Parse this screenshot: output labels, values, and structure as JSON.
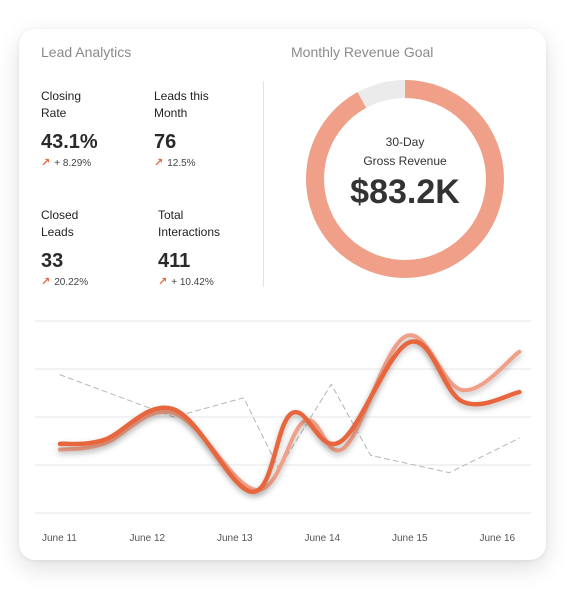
{
  "lead_analytics": {
    "title": "Lead Analytics",
    "metrics": [
      {
        "label_line1": "Closing",
        "label_line2": "Rate",
        "value": "43.1%",
        "change": "+ 8.29%"
      },
      {
        "label_line1": "Leads this",
        "label_line2": "Month",
        "value": "76",
        "change": "12.5%"
      },
      {
        "label_line1": "Closed",
        "label_line2": "Leads",
        "value": "33",
        "change": "20.22%"
      },
      {
        "label_line1": "Total",
        "label_line2": "Interactions",
        "value": "411",
        "change": "+ 10.42%"
      }
    ],
    "arrow_icon": "trend-up-icon"
  },
  "revenue_goal": {
    "title": "Monthly Revenue Goal",
    "label_line1": "30-Day",
    "label_line2": "Gross Revenue",
    "value": "$83.2K",
    "progress_fraction": 0.92,
    "colors": {
      "progress": "#f0a088",
      "remainder": "#ebebeb"
    }
  },
  "chart_data": {
    "type": "line",
    "categories": [
      "June 11",
      "June 12",
      "June 13",
      "June 14",
      "June 15",
      "June 16"
    ],
    "ylim": [
      0,
      100
    ],
    "grid": true,
    "series": [
      {
        "style": "thick",
        "color": "#e8663d",
        "x": [
          0,
          0.5,
          1.3,
          2.2,
          2.65,
          3.2,
          4.0,
          4.6,
          5.25
        ],
        "values": [
          36,
          38,
          54,
          11,
          52,
          37,
          89,
          58,
          63
        ]
      },
      {
        "style": "light",
        "color": "#f0a088",
        "x": [
          0,
          0.5,
          1.3,
          2.25,
          2.8,
          3.25,
          3.95,
          4.6,
          5.25
        ],
        "values": [
          33,
          36,
          52,
          12,
          48,
          34,
          92,
          64,
          84
        ]
      },
      {
        "style": "dashed",
        "color": "#b5b5b5",
        "x": [
          0,
          1.3,
          2.1,
          2.5,
          3.1,
          3.55,
          4.45,
          5.25
        ],
        "values": [
          72,
          50,
          60,
          23,
          67,
          30,
          21,
          39
        ]
      }
    ]
  }
}
